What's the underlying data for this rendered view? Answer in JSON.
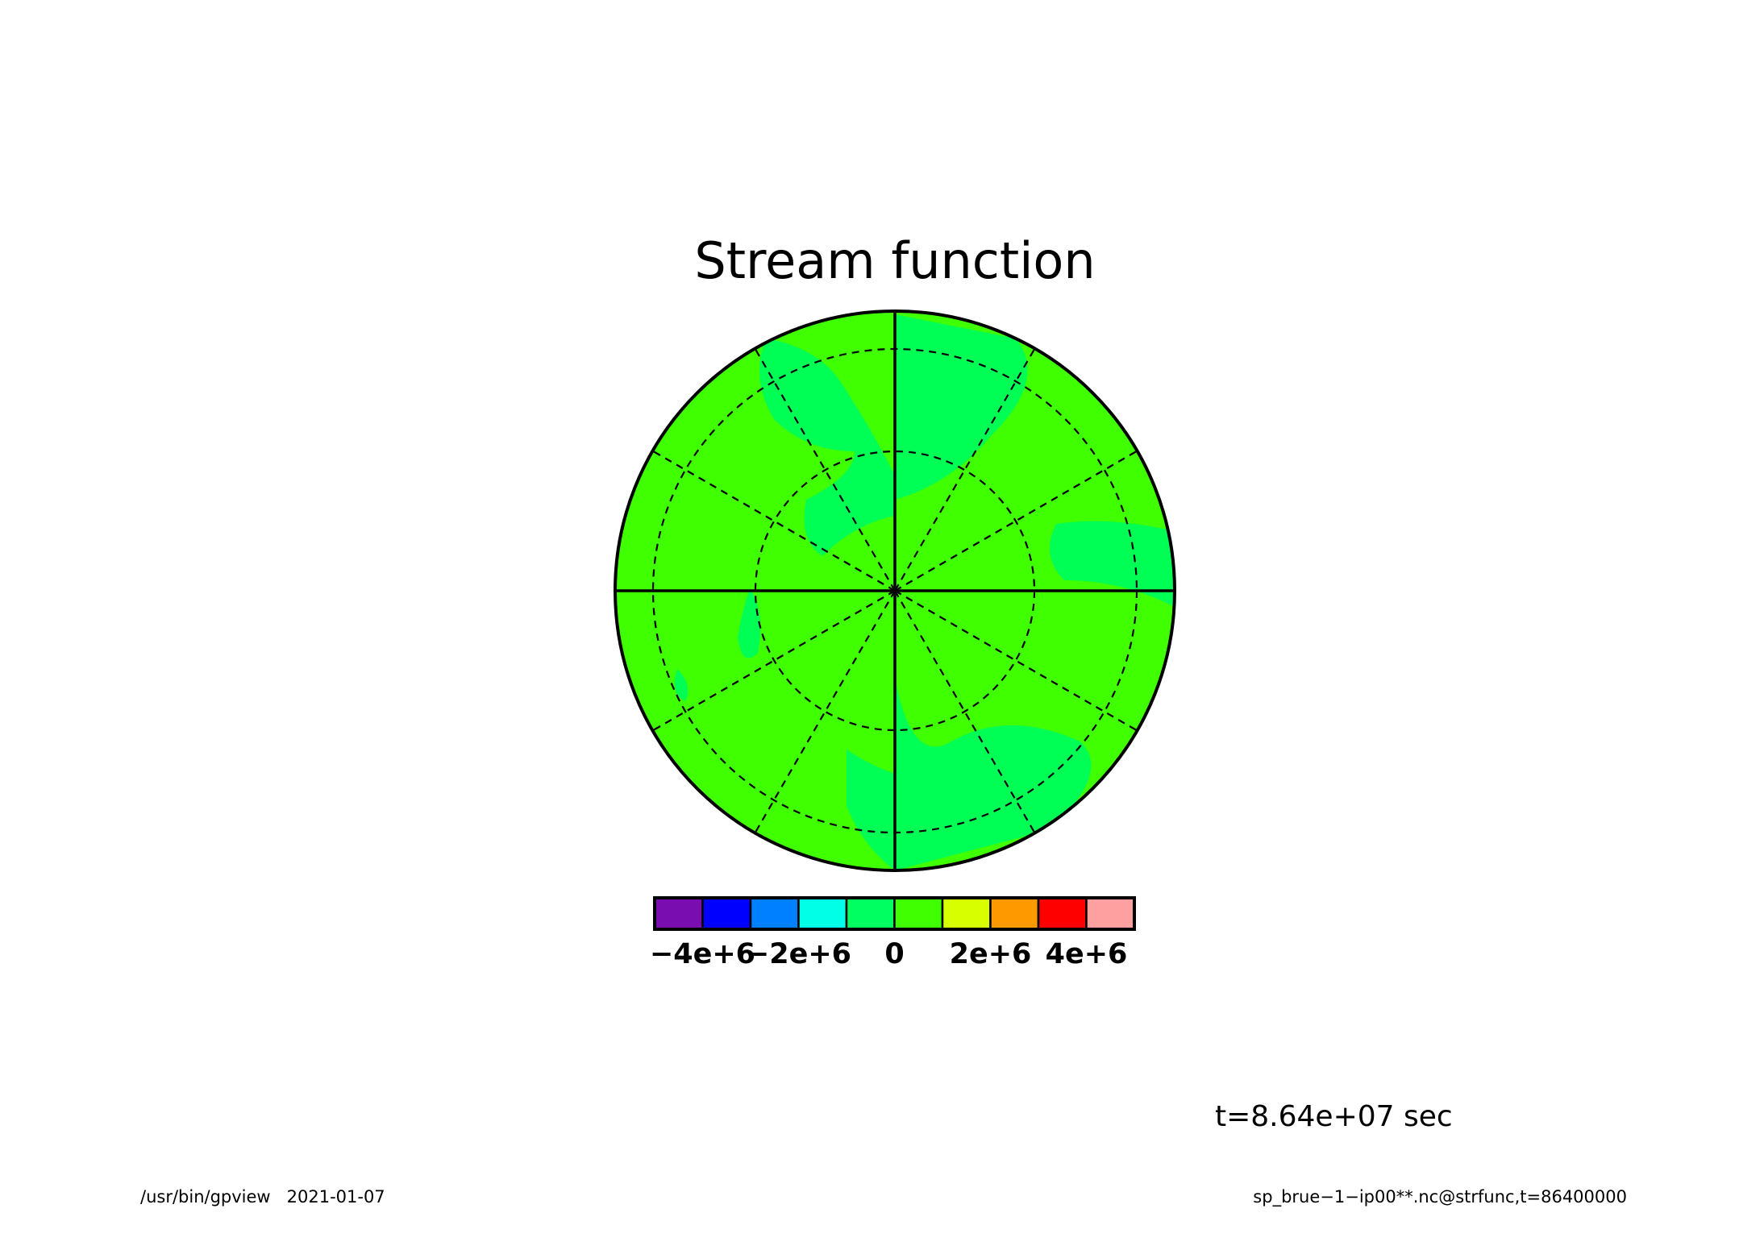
{
  "chart_data": {
    "type": "polar-contour",
    "title": "Stream function",
    "colorbar": {
      "bins": [
        -5000000,
        -4000000,
        -3000000,
        -2000000,
        -1000000,
        0,
        1000000,
        2000000,
        3000000,
        4000000,
        5000000
      ],
      "colors": [
        "#7a0db0",
        "#0000ff",
        "#0080ff",
        "#00ffe6",
        "#00ff60",
        "#40ff00",
        "#d8ff00",
        "#ff9900",
        "#ff0000",
        "#ffa0a0"
      ],
      "xlim": [
        -5000000,
        5000000
      ],
      "xticks": [
        {
          "value": -4000000,
          "label": "−4e+6"
        },
        {
          "value": -2000000,
          "label": "−2e+6"
        },
        0,
        {
          "value": 2000000,
          "label": "2e+6"
        },
        {
          "value": 4000000,
          "label": "4e+6"
        }
      ]
    },
    "annotations": {
      "time": "t=8.64e+07 sec",
      "footer_left": "/usr/bin/gpview   2021-01-07",
      "footer_right": "sp_brue−1−ip00**.nc@strfunc,t=86400000"
    }
  }
}
